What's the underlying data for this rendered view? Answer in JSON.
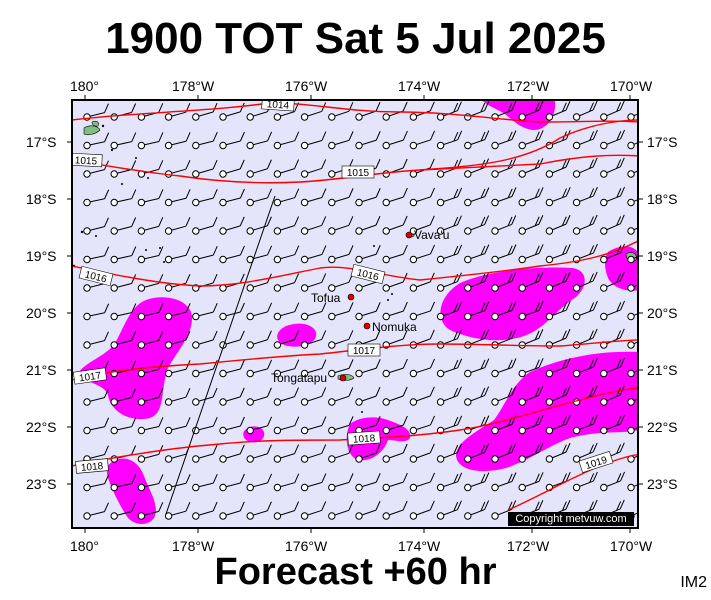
{
  "title": "1900 TOT Sat 5 Jul 2025",
  "subtitle": "Forecast +60 hr",
  "corner_label": "IM2",
  "copyright": "Copyright metvuw.com",
  "axes": {
    "top_lon_labels": [
      "180°",
      "178°W",
      "176°W",
      "174°W",
      "172°W",
      "170°W"
    ],
    "bottom_lon_labels": [
      "180°",
      "178°W",
      "176°W",
      "174°W",
      "172°W",
      "170°W"
    ],
    "left_lat_labels": [
      "17°S",
      "18°S",
      "19°S",
      "20°S",
      "21°S",
      "22°S",
      "23°S"
    ],
    "right_lat_labels": [
      "17°S",
      "18°S",
      "19°S",
      "20°S",
      "21°S",
      "22°S",
      "23°S"
    ]
  },
  "isobar_labels": [
    "1014",
    "1015",
    "1015",
    "1016",
    "1016",
    "1017",
    "1017",
    "1018",
    "1018",
    "1019"
  ],
  "places": [
    "Vava'u",
    "Tofua",
    "Nomuka",
    "Tongatapu"
  ],
  "colors": {
    "ocean": "#e4e4fb",
    "isobar": "#ff0000",
    "rain": "#ff00ff",
    "land": "#7fbf7f",
    "place_marker": "#dd0000"
  }
}
